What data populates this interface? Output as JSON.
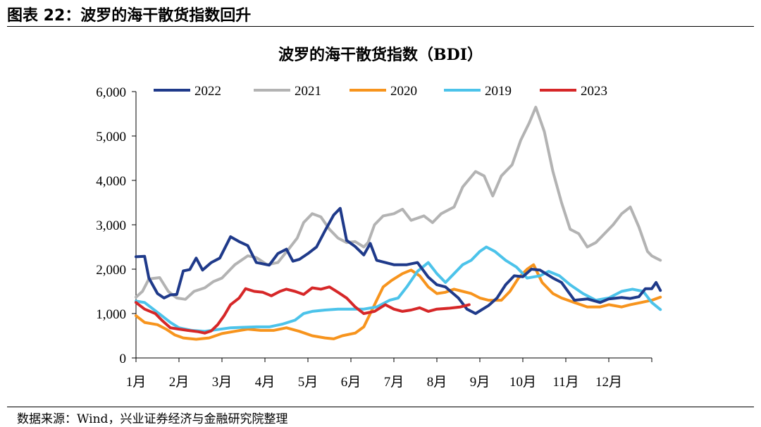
{
  "figure_title": "图表 22：波罗的海干散货指数回升",
  "source_note": "数据来源：Wind，兴业证券经济与金融研究院整理",
  "chart_data": {
    "type": "line",
    "title": "波罗的海干散货指数（BDI）",
    "xlabel": "",
    "ylabel": "",
    "x_ticks": [
      "1月",
      "2月",
      "3月",
      "4月",
      "5月",
      "6月",
      "7月",
      "8月",
      "9月",
      "10月",
      "11月",
      "12月"
    ],
    "y_ticks": [
      "0",
      "1,000",
      "2,000",
      "3,000",
      "4,000",
      "5,000",
      "6,000"
    ],
    "ylim": [
      0,
      6000
    ],
    "x_unit": "month (1 = 1月, 13 = year end)",
    "xlim": [
      1,
      13
    ],
    "grid": false,
    "legend_position": "top",
    "series": [
      {
        "name": "2022",
        "color": "#1f3a8a",
        "points": [
          [
            1.0,
            2280
          ],
          [
            1.2,
            2290
          ],
          [
            1.3,
            1800
          ],
          [
            1.5,
            1450
          ],
          [
            1.65,
            1350
          ],
          [
            1.8,
            1420
          ],
          [
            1.95,
            1430
          ],
          [
            2.1,
            1960
          ],
          [
            2.25,
            1990
          ],
          [
            2.4,
            2250
          ],
          [
            2.55,
            1980
          ],
          [
            2.75,
            2150
          ],
          [
            2.95,
            2250
          ],
          [
            3.2,
            2730
          ],
          [
            3.4,
            2620
          ],
          [
            3.6,
            2530
          ],
          [
            3.8,
            2150
          ],
          [
            4.1,
            2090
          ],
          [
            4.3,
            2350
          ],
          [
            4.5,
            2450
          ],
          [
            4.65,
            2180
          ],
          [
            4.8,
            2220
          ],
          [
            5.0,
            2350
          ],
          [
            5.2,
            2500
          ],
          [
            5.4,
            2870
          ],
          [
            5.6,
            3220
          ],
          [
            5.75,
            3370
          ],
          [
            5.9,
            2650
          ],
          [
            6.1,
            2510
          ],
          [
            6.3,
            2320
          ],
          [
            6.45,
            2580
          ],
          [
            6.6,
            2200
          ],
          [
            7.0,
            2100
          ],
          [
            7.3,
            2100
          ],
          [
            7.55,
            2150
          ],
          [
            7.8,
            1820
          ],
          [
            8.0,
            1650
          ],
          [
            8.2,
            1600
          ],
          [
            8.5,
            1350
          ],
          [
            8.7,
            1100
          ],
          [
            8.9,
            1000
          ],
          [
            9.2,
            1180
          ],
          [
            9.4,
            1350
          ],
          [
            9.6,
            1650
          ],
          [
            9.8,
            1850
          ],
          [
            10.0,
            1830
          ],
          [
            10.2,
            2000
          ],
          [
            10.4,
            1980
          ],
          [
            10.7,
            1800
          ],
          [
            10.9,
            1700
          ],
          [
            11.2,
            1300
          ],
          [
            11.5,
            1330
          ],
          [
            11.8,
            1250
          ],
          [
            12.0,
            1330
          ],
          [
            12.3,
            1360
          ],
          [
            12.5,
            1340
          ],
          [
            12.7,
            1380
          ],
          [
            12.85,
            1560
          ],
          [
            13.0,
            1560
          ],
          [
            13.1,
            1700
          ],
          [
            13.2,
            1520
          ]
        ]
      },
      {
        "name": "2021",
        "color": "#b3b3b3",
        "points": [
          [
            1.0,
            1370
          ],
          [
            1.15,
            1500
          ],
          [
            1.3,
            1780
          ],
          [
            1.55,
            1810
          ],
          [
            1.75,
            1500
          ],
          [
            1.95,
            1350
          ],
          [
            2.15,
            1320
          ],
          [
            2.35,
            1500
          ],
          [
            2.6,
            1580
          ],
          [
            2.8,
            1720
          ],
          [
            3.0,
            1800
          ],
          [
            3.3,
            2100
          ],
          [
            3.6,
            2300
          ],
          [
            3.8,
            2260
          ],
          [
            4.05,
            2100
          ],
          [
            4.3,
            2150
          ],
          [
            4.55,
            2450
          ],
          [
            4.75,
            2700
          ],
          [
            4.9,
            3050
          ],
          [
            5.1,
            3250
          ],
          [
            5.3,
            3180
          ],
          [
            5.5,
            2900
          ],
          [
            5.7,
            2700
          ],
          [
            5.9,
            2600
          ],
          [
            6.1,
            2620
          ],
          [
            6.3,
            2500
          ],
          [
            6.4,
            2600
          ],
          [
            6.55,
            3000
          ],
          [
            6.75,
            3200
          ],
          [
            7.0,
            3250
          ],
          [
            7.2,
            3350
          ],
          [
            7.4,
            3100
          ],
          [
            7.7,
            3200
          ],
          [
            7.9,
            3050
          ],
          [
            8.1,
            3250
          ],
          [
            8.4,
            3400
          ],
          [
            8.6,
            3850
          ],
          [
            8.9,
            4200
          ],
          [
            9.1,
            4100
          ],
          [
            9.3,
            3650
          ],
          [
            9.5,
            4100
          ],
          [
            9.75,
            4350
          ],
          [
            9.95,
            4900
          ],
          [
            10.15,
            5300
          ],
          [
            10.3,
            5650
          ],
          [
            10.5,
            5100
          ],
          [
            10.7,
            4200
          ],
          [
            10.9,
            3500
          ],
          [
            11.1,
            2900
          ],
          [
            11.3,
            2800
          ],
          [
            11.5,
            2500
          ],
          [
            11.7,
            2600
          ],
          [
            11.9,
            2800
          ],
          [
            12.1,
            3000
          ],
          [
            12.3,
            3250
          ],
          [
            12.5,
            3400
          ],
          [
            12.7,
            2950
          ],
          [
            12.9,
            2400
          ],
          [
            13.0,
            2300
          ],
          [
            13.1,
            2250
          ],
          [
            13.2,
            2200
          ]
        ]
      },
      {
        "name": "2020",
        "color": "#f7941d",
        "points": [
          [
            1.0,
            950
          ],
          [
            1.2,
            800
          ],
          [
            1.5,
            750
          ],
          [
            1.7,
            650
          ],
          [
            1.9,
            520
          ],
          [
            2.1,
            450
          ],
          [
            2.4,
            420
          ],
          [
            2.7,
            450
          ],
          [
            3.0,
            550
          ],
          [
            3.3,
            600
          ],
          [
            3.6,
            650
          ],
          [
            3.9,
            620
          ],
          [
            4.2,
            620
          ],
          [
            4.5,
            680
          ],
          [
            4.8,
            600
          ],
          [
            5.1,
            500
          ],
          [
            5.4,
            450
          ],
          [
            5.6,
            430
          ],
          [
            5.8,
            500
          ],
          [
            6.1,
            560
          ],
          [
            6.3,
            700
          ],
          [
            6.45,
            1000
          ],
          [
            6.6,
            1300
          ],
          [
            6.75,
            1600
          ],
          [
            6.95,
            1750
          ],
          [
            7.2,
            1900
          ],
          [
            7.4,
            1980
          ],
          [
            7.6,
            1850
          ],
          [
            7.8,
            1600
          ],
          [
            8.0,
            1450
          ],
          [
            8.2,
            1480
          ],
          [
            8.4,
            1550
          ],
          [
            8.6,
            1500
          ],
          [
            8.8,
            1450
          ],
          [
            9.0,
            1350
          ],
          [
            9.2,
            1300
          ],
          [
            9.5,
            1300
          ],
          [
            9.7,
            1500
          ],
          [
            9.9,
            1800
          ],
          [
            10.1,
            2000
          ],
          [
            10.25,
            2100
          ],
          [
            10.45,
            1700
          ],
          [
            10.7,
            1450
          ],
          [
            10.9,
            1350
          ],
          [
            11.2,
            1250
          ],
          [
            11.5,
            1150
          ],
          [
            11.8,
            1150
          ],
          [
            12.0,
            1200
          ],
          [
            12.3,
            1150
          ],
          [
            12.5,
            1200
          ],
          [
            12.75,
            1250
          ],
          [
            13.0,
            1300
          ],
          [
            13.2,
            1370
          ]
        ]
      },
      {
        "name": "2019",
        "color": "#4cc3ea",
        "points": [
          [
            1.0,
            1280
          ],
          [
            1.2,
            1250
          ],
          [
            1.4,
            1100
          ],
          [
            1.6,
            950
          ],
          [
            1.8,
            800
          ],
          [
            2.0,
            680
          ],
          [
            2.3,
            620
          ],
          [
            2.6,
            600
          ],
          [
            2.9,
            640
          ],
          [
            3.2,
            680
          ],
          [
            3.5,
            690
          ],
          [
            3.8,
            700
          ],
          [
            4.1,
            700
          ],
          [
            4.4,
            760
          ],
          [
            4.7,
            850
          ],
          [
            4.9,
            1000
          ],
          [
            5.1,
            1050
          ],
          [
            5.4,
            1080
          ],
          [
            5.7,
            1100
          ],
          [
            6.0,
            1100
          ],
          [
            6.3,
            1100
          ],
          [
            6.6,
            1150
          ],
          [
            6.9,
            1300
          ],
          [
            7.1,
            1350
          ],
          [
            7.3,
            1600
          ],
          [
            7.55,
            1950
          ],
          [
            7.8,
            2150
          ],
          [
            8.0,
            1900
          ],
          [
            8.2,
            1700
          ],
          [
            8.4,
            1900
          ],
          [
            8.6,
            2100
          ],
          [
            8.8,
            2200
          ],
          [
            9.0,
            2400
          ],
          [
            9.15,
            2500
          ],
          [
            9.35,
            2400
          ],
          [
            9.6,
            2200
          ],
          [
            9.85,
            2050
          ],
          [
            10.1,
            1800
          ],
          [
            10.4,
            1850
          ],
          [
            10.6,
            1950
          ],
          [
            10.85,
            1850
          ],
          [
            11.1,
            1650
          ],
          [
            11.4,
            1450
          ],
          [
            11.7,
            1300
          ],
          [
            12.0,
            1350
          ],
          [
            12.3,
            1500
          ],
          [
            12.55,
            1550
          ],
          [
            12.8,
            1500
          ],
          [
            13.0,
            1250
          ],
          [
            13.2,
            1090
          ]
        ]
      },
      {
        "name": "2023",
        "color": "#d62728",
        "points": [
          [
            1.0,
            1250
          ],
          [
            1.2,
            1100
          ],
          [
            1.45,
            1000
          ],
          [
            1.6,
            850
          ],
          [
            1.8,
            680
          ],
          [
            2.0,
            650
          ],
          [
            2.2,
            620
          ],
          [
            2.45,
            590
          ],
          [
            2.6,
            560
          ],
          [
            2.75,
            610
          ],
          [
            2.9,
            750
          ],
          [
            3.05,
            950
          ],
          [
            3.2,
            1200
          ],
          [
            3.4,
            1350
          ],
          [
            3.55,
            1560
          ],
          [
            3.75,
            1500
          ],
          [
            3.95,
            1480
          ],
          [
            4.15,
            1400
          ],
          [
            4.35,
            1500
          ],
          [
            4.5,
            1550
          ],
          [
            4.7,
            1500
          ],
          [
            4.9,
            1430
          ],
          [
            5.1,
            1580
          ],
          [
            5.3,
            1550
          ],
          [
            5.5,
            1600
          ],
          [
            5.7,
            1480
          ],
          [
            5.9,
            1350
          ],
          [
            6.1,
            1150
          ],
          [
            6.3,
            1000
          ],
          [
            6.55,
            1050
          ],
          [
            6.8,
            1200
          ],
          [
            7.0,
            1100
          ],
          [
            7.2,
            1050
          ],
          [
            7.4,
            1080
          ],
          [
            7.6,
            1130
          ],
          [
            7.8,
            1050
          ],
          [
            8.0,
            1100
          ],
          [
            8.3,
            1120
          ],
          [
            8.55,
            1150
          ],
          [
            8.75,
            1200
          ]
        ]
      }
    ]
  }
}
